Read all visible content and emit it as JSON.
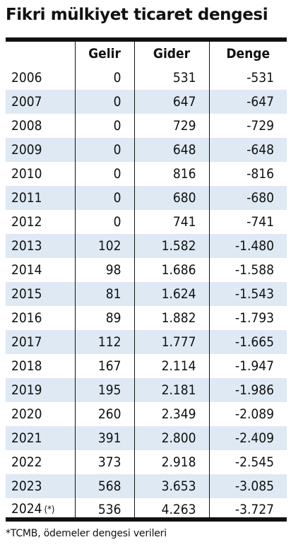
{
  "title": "Fikri mülkiyet ticaret dengesi",
  "footnote": "*TCMB, ödemeler dengesi verileri",
  "colors": {
    "stripe": "#dfe9f3",
    "text": "#111111",
    "rule": "#111111"
  },
  "chart_data": {
    "type": "table",
    "title": "Fikri mülkiyet ticaret dengesi",
    "columns": [
      "",
      "Gelir",
      "Gider",
      "Denge"
    ],
    "rows": [
      {
        "year": "2006",
        "note": "",
        "gelir": "0",
        "gider": "531",
        "denge": "-531"
      },
      {
        "year": "2007",
        "note": "",
        "gelir": "0",
        "gider": "647",
        "denge": "-647"
      },
      {
        "year": "2008",
        "note": "",
        "gelir": "0",
        "gider": "729",
        "denge": "-729"
      },
      {
        "year": "2009",
        "note": "",
        "gelir": "0",
        "gider": "648",
        "denge": "-648"
      },
      {
        "year": "2010",
        "note": "",
        "gelir": "0",
        "gider": "816",
        "denge": "-816"
      },
      {
        "year": "2011",
        "note": "",
        "gelir": "0",
        "gider": "680",
        "denge": "-680"
      },
      {
        "year": "2012",
        "note": "",
        "gelir": "0",
        "gider": "741",
        "denge": "-741"
      },
      {
        "year": "2013",
        "note": "",
        "gelir": "102",
        "gider": "1.582",
        "denge": "-1.480"
      },
      {
        "year": "2014",
        "note": "",
        "gelir": "98",
        "gider": "1.686",
        "denge": "-1.588"
      },
      {
        "year": "2015",
        "note": "",
        "gelir": "81",
        "gider": "1.624",
        "denge": "-1.543"
      },
      {
        "year": "2016",
        "note": "",
        "gelir": "89",
        "gider": "1.882",
        "denge": "-1.793"
      },
      {
        "year": "2017",
        "note": "",
        "gelir": "112",
        "gider": "1.777",
        "denge": "-1.665"
      },
      {
        "year": "2018",
        "note": "",
        "gelir": "167",
        "gider": "2.114",
        "denge": "-1.947"
      },
      {
        "year": "2019",
        "note": "",
        "gelir": "195",
        "gider": "2.181",
        "denge": "-1.986"
      },
      {
        "year": "2020",
        "note": "",
        "gelir": "260",
        "gider": "2.349",
        "denge": "-2.089"
      },
      {
        "year": "2021",
        "note": "",
        "gelir": "391",
        "gider": "2.800",
        "denge": "-2.409"
      },
      {
        "year": "2022",
        "note": "",
        "gelir": "373",
        "gider": "2.918",
        "denge": "-2.545"
      },
      {
        "year": "2023",
        "note": "",
        "gelir": "568",
        "gider": "3.653",
        "denge": "-3.085"
      },
      {
        "year": "2024",
        "note": "(*)",
        "gelir": "536",
        "gider": "4.263",
        "denge": "-3.727"
      }
    ]
  }
}
